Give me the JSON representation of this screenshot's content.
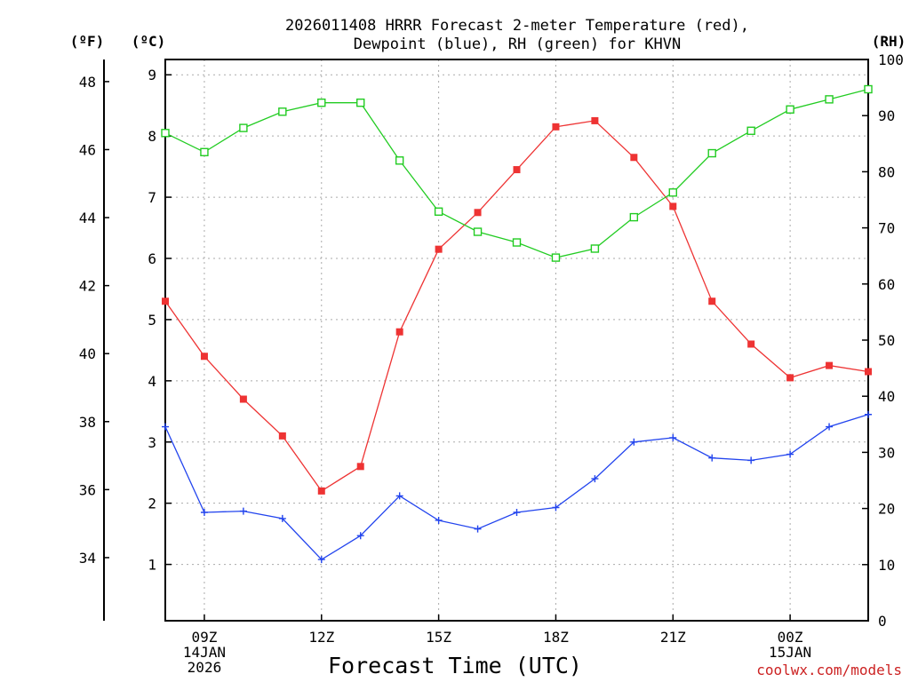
{
  "chart_data": {
    "type": "line",
    "title_line1": "2026011408 HRRR Forecast 2-meter Temperature (red),",
    "title_line2": "Dewpoint (blue), RH (green) for KHVN",
    "xlabel": "Forecast Time (UTC)",
    "watermark": "coolwx.com/models",
    "units": {
      "fahrenheit": "(ºF)",
      "celsius": "(ºC)",
      "rh": "(RH)"
    },
    "x_hours": [
      8,
      9,
      10,
      11,
      12,
      13,
      14,
      15,
      16,
      17,
      18,
      19,
      20,
      21,
      22,
      23,
      24,
      25,
      26
    ],
    "xlim": [
      8,
      26
    ],
    "x_ticks": [
      {
        "h": 9,
        "lines": [
          "09Z",
          "14JAN",
          "2026"
        ]
      },
      {
        "h": 12,
        "lines": [
          "12Z"
        ]
      },
      {
        "h": 15,
        "lines": [
          "15Z"
        ]
      },
      {
        "h": 18,
        "lines": [
          "18Z"
        ]
      },
      {
        "h": 21,
        "lines": [
          "21Z"
        ]
      },
      {
        "h": 24,
        "lines": [
          "00Z",
          "15JAN"
        ]
      }
    ],
    "ylim_celsius": [
      0.08,
      9.25
    ],
    "y_ticks_celsius": [
      1,
      2,
      3,
      4,
      5,
      6,
      7,
      8,
      9
    ],
    "y_ticks_fahrenheit": [
      34,
      36,
      38,
      40,
      42,
      44,
      46,
      48
    ],
    "ylim_rh": [
      0,
      100
    ],
    "y_ticks_rh": [
      0,
      10,
      20,
      30,
      40,
      50,
      60,
      70,
      80,
      90,
      100
    ],
    "series": [
      {
        "name": "Temperature",
        "unit": "C",
        "color": "#ee3333",
        "marker": "filled-square",
        "values": [
          5.3,
          4.4,
          3.7,
          3.1,
          2.2,
          2.6,
          4.8,
          6.15,
          6.75,
          7.45,
          8.15,
          8.25,
          7.65,
          6.85,
          5.3,
          4.6,
          4.05,
          4.25,
          4.15
        ]
      },
      {
        "name": "Dewpoint",
        "unit": "C",
        "color": "#2244ee",
        "marker": "plus",
        "values": [
          3.25,
          1.85,
          1.87,
          1.75,
          1.08,
          1.47,
          2.12,
          1.72,
          1.58,
          1.85,
          1.93,
          2.4,
          3.0,
          3.07,
          2.74,
          2.7,
          2.8,
          3.25,
          3.45
        ]
      },
      {
        "name": "RH",
        "unit": "%",
        "color": "#22cc22",
        "marker": "open-square",
        "values": [
          86.9,
          83.5,
          87.8,
          90.7,
          92.3,
          92.3,
          82.0,
          72.9,
          69.3,
          67.4,
          64.7,
          66.3,
          71.9,
          76.3,
          83.3,
          87.3,
          91.1,
          92.9,
          94.7
        ]
      }
    ]
  }
}
